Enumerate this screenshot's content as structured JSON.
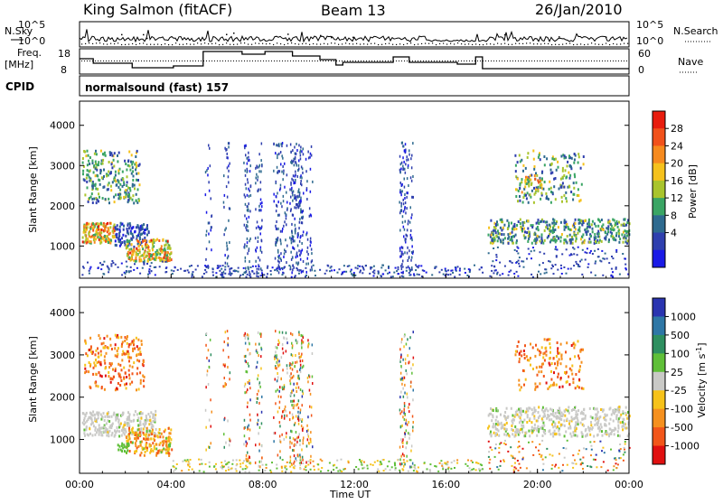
{
  "header": {
    "station": "King Salmon (fitACF)",
    "beam": "Beam 13",
    "date": "26/Jan/2010"
  },
  "strip": {
    "nsky_label": "N.Sky",
    "nsearch_label": "N.Search",
    "noise_ticks": [
      "10^5",
      "10^0"
    ],
    "freq_label_1": "Freq.",
    "freq_label_2": "[MHz]",
    "freq_ticks": [
      "18",
      "8"
    ],
    "nave_label": "Nave",
    "nave_ticks": [
      "60",
      "0"
    ],
    "cpid_label": "CPID",
    "cpid_text": "normalsound (fast) 157"
  },
  "chart_data": [
    {
      "type": "heatmap",
      "name": "power",
      "ylabel": "Slant Range [km]",
      "xlabel": "",
      "x_range_hours": [
        0,
        24
      ],
      "ylim_km": [
        200,
        4600
      ],
      "yticks": [
        1000,
        2000,
        3000,
        4000
      ],
      "colorbar": {
        "label": "Power [dB]",
        "ticks": [
          "28",
          "24",
          "20",
          "16",
          "12",
          "8",
          "4"
        ],
        "colors": [
          "#e81c0e",
          "#f1511b",
          "#f68a1e",
          "#f5c11c",
          "#a9c42c",
          "#3aa564",
          "#2e6a8f",
          "#2f3fae",
          "#1a1ae6"
        ]
      }
    },
    {
      "type": "heatmap",
      "name": "velocity",
      "ylabel": "Slant Range [km]",
      "xlabel": "Time UT",
      "x_range_hours": [
        0,
        24
      ],
      "xticks": [
        "00:00",
        "04:00",
        "08:00",
        "12:00",
        "16:00",
        "20:00",
        "00:00"
      ],
      "ylim_km": [
        200,
        4600
      ],
      "yticks": [
        1000,
        2000,
        3000,
        4000
      ],
      "colorbar": {
        "label": "Velocity [m s-1]",
        "ticks": [
          "1000",
          "500",
          "100",
          "25",
          "-25",
          "-100",
          "-500",
          "-1000"
        ],
        "colors": [
          "#2a34b0",
          "#2e77a6",
          "#2e8f60",
          "#5fbf38",
          "#c9c9c6",
          "#f6c21a",
          "#f5901e",
          "#f2561a",
          "#e01010"
        ]
      }
    }
  ]
}
